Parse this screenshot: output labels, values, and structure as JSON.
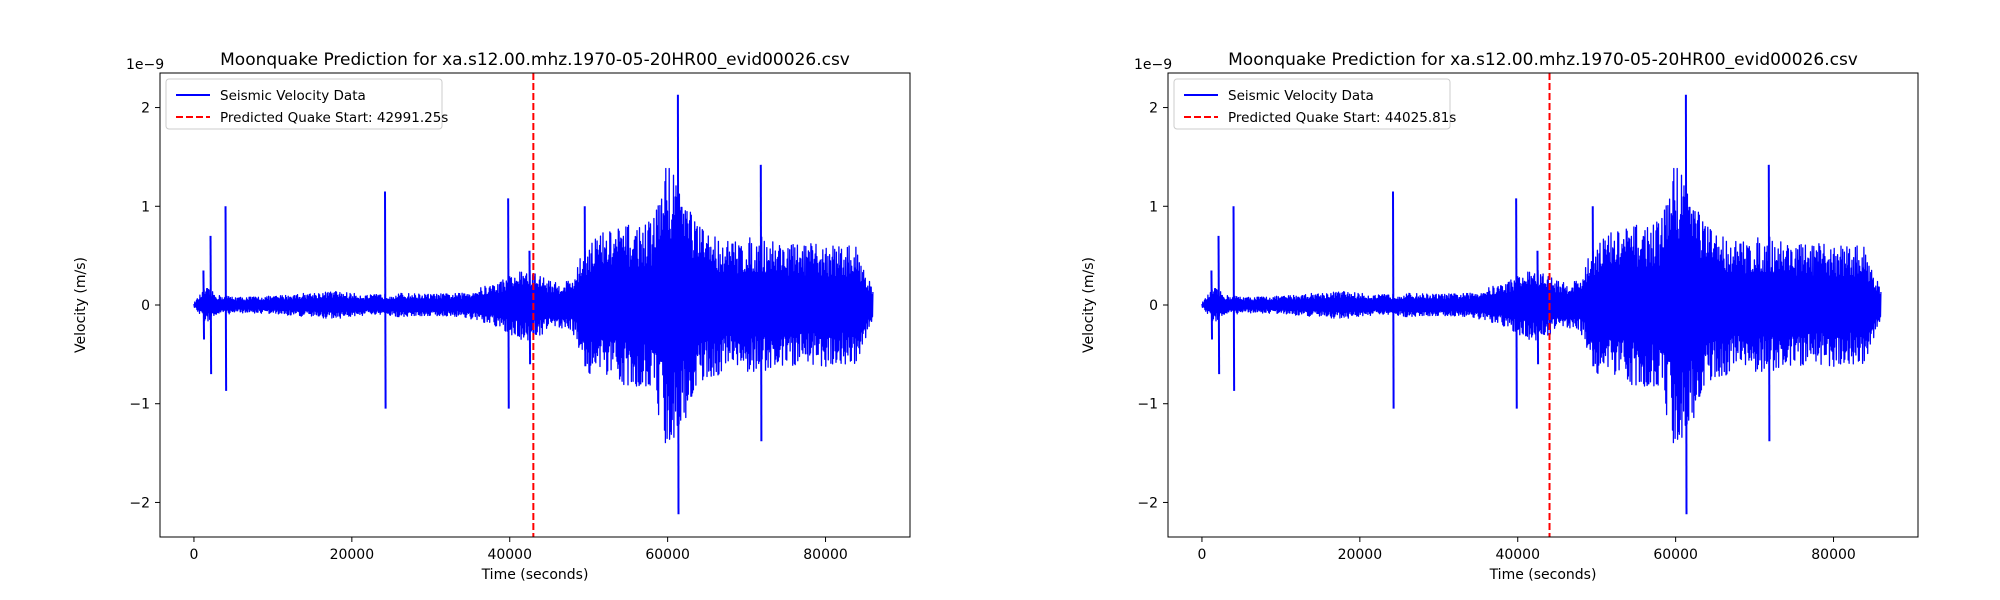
{
  "chart_data": [
    {
      "type": "line",
      "title": "Moonquake Prediction for xa.s12.00.mhz.1970-05-20HR00_evid00026.csv",
      "xlabel": "Time (seconds)",
      "ylabel": "Velocity (m/s)",
      "y_offset_label": "1e−9",
      "xlim": [
        -4300,
        90700
      ],
      "ylim": [
        -2.35,
        2.35
      ],
      "x_ticks": [
        0,
        20000,
        40000,
        60000,
        80000
      ],
      "x_tick_labels": [
        "0",
        "20000",
        "40000",
        "60000",
        "80000"
      ],
      "y_ticks": [
        2,
        1,
        0,
        -1,
        -2
      ],
      "y_tick_labels": [
        "2",
        "1",
        "0",
        "−1",
        "−2"
      ],
      "legend_position": "upper-left",
      "series": [
        {
          "name": "Seismic Velocity Data",
          "color": "#0000ff",
          "style": "solid",
          "envelope": [
            [
              0,
              0.02
            ],
            [
              1500,
              0.18
            ],
            [
              3000,
              0.1
            ],
            [
              6000,
              0.08
            ],
            [
              10000,
              0.09
            ],
            [
              14000,
              0.12
            ],
            [
              18000,
              0.14
            ],
            [
              22000,
              0.1
            ],
            [
              26000,
              0.12
            ],
            [
              30000,
              0.11
            ],
            [
              34000,
              0.12
            ],
            [
              38000,
              0.22
            ],
            [
              42000,
              0.38
            ],
            [
              44000,
              0.3
            ],
            [
              46000,
              0.22
            ],
            [
              48000,
              0.28
            ],
            [
              50000,
              0.7
            ],
            [
              54000,
              0.8
            ],
            [
              58000,
              0.85
            ],
            [
              60000,
              1.5
            ],
            [
              62000,
              1.2
            ],
            [
              64000,
              0.8
            ],
            [
              68000,
              0.65
            ],
            [
              72000,
              0.7
            ],
            [
              76000,
              0.62
            ],
            [
              80000,
              0.62
            ],
            [
              84000,
              0.6
            ],
            [
              86000,
              0.15
            ]
          ],
          "spikes": [
            [
              1200,
              0.35,
              -0.35
            ],
            [
              2100,
              0.7,
              -0.7
            ],
            [
              4000,
              1.0,
              -0.87
            ],
            [
              24200,
              1.15,
              -1.05
            ],
            [
              39800,
              1.08,
              -1.05
            ],
            [
              42500,
              0.55,
              -0.6
            ],
            [
              49500,
              1.0,
              -0.62
            ],
            [
              61300,
              2.13,
              -2.12
            ],
            [
              71800,
              1.42,
              -1.38
            ]
          ]
        }
      ],
      "prediction": {
        "name": "Predicted Quake Start: 42991.25s",
        "x": 42991.25,
        "color": "#ff0000",
        "style": "dashed"
      }
    },
    {
      "type": "line",
      "title": "Moonquake Prediction for xa.s12.00.mhz.1970-05-20HR00_evid00026.csv",
      "xlabel": "Time (seconds)",
      "ylabel": "Velocity (m/s)",
      "y_offset_label": "1e−9",
      "xlim": [
        -4300,
        90700
      ],
      "ylim": [
        -2.35,
        2.35
      ],
      "x_ticks": [
        0,
        20000,
        40000,
        60000,
        80000
      ],
      "x_tick_labels": [
        "0",
        "20000",
        "40000",
        "60000",
        "80000"
      ],
      "y_ticks": [
        2,
        1,
        0,
        -1,
        -2
      ],
      "y_tick_labels": [
        "2",
        "1",
        "0",
        "−1",
        "−2"
      ],
      "legend_position": "upper-left",
      "series": [
        {
          "name": "Seismic Velocity Data",
          "color": "#0000ff",
          "style": "solid",
          "envelope": [
            [
              0,
              0.02
            ],
            [
              1500,
              0.18
            ],
            [
              3000,
              0.1
            ],
            [
              6000,
              0.08
            ],
            [
              10000,
              0.09
            ],
            [
              14000,
              0.12
            ],
            [
              18000,
              0.14
            ],
            [
              22000,
              0.1
            ],
            [
              26000,
              0.12
            ],
            [
              30000,
              0.11
            ],
            [
              34000,
              0.12
            ],
            [
              38000,
              0.22
            ],
            [
              42000,
              0.38
            ],
            [
              44000,
              0.3
            ],
            [
              46000,
              0.22
            ],
            [
              48000,
              0.28
            ],
            [
              50000,
              0.7
            ],
            [
              54000,
              0.8
            ],
            [
              58000,
              0.85
            ],
            [
              60000,
              1.5
            ],
            [
              62000,
              1.2
            ],
            [
              64000,
              0.8
            ],
            [
              68000,
              0.65
            ],
            [
              72000,
              0.7
            ],
            [
              76000,
              0.62
            ],
            [
              80000,
              0.62
            ],
            [
              84000,
              0.6
            ],
            [
              86000,
              0.15
            ]
          ],
          "spikes": [
            [
              1200,
              0.35,
              -0.35
            ],
            [
              2100,
              0.7,
              -0.7
            ],
            [
              4000,
              1.0,
              -0.87
            ],
            [
              24200,
              1.15,
              -1.05
            ],
            [
              39800,
              1.08,
              -1.05
            ],
            [
              42500,
              0.55,
              -0.6
            ],
            [
              49500,
              1.0,
              -0.62
            ],
            [
              61300,
              2.13,
              -2.12
            ],
            [
              71800,
              1.42,
              -1.38
            ]
          ]
        }
      ],
      "prediction": {
        "name": "Predicted Quake Start: 44025.81s",
        "x": 44025.81,
        "color": "#ff0000",
        "style": "dashed"
      }
    }
  ]
}
